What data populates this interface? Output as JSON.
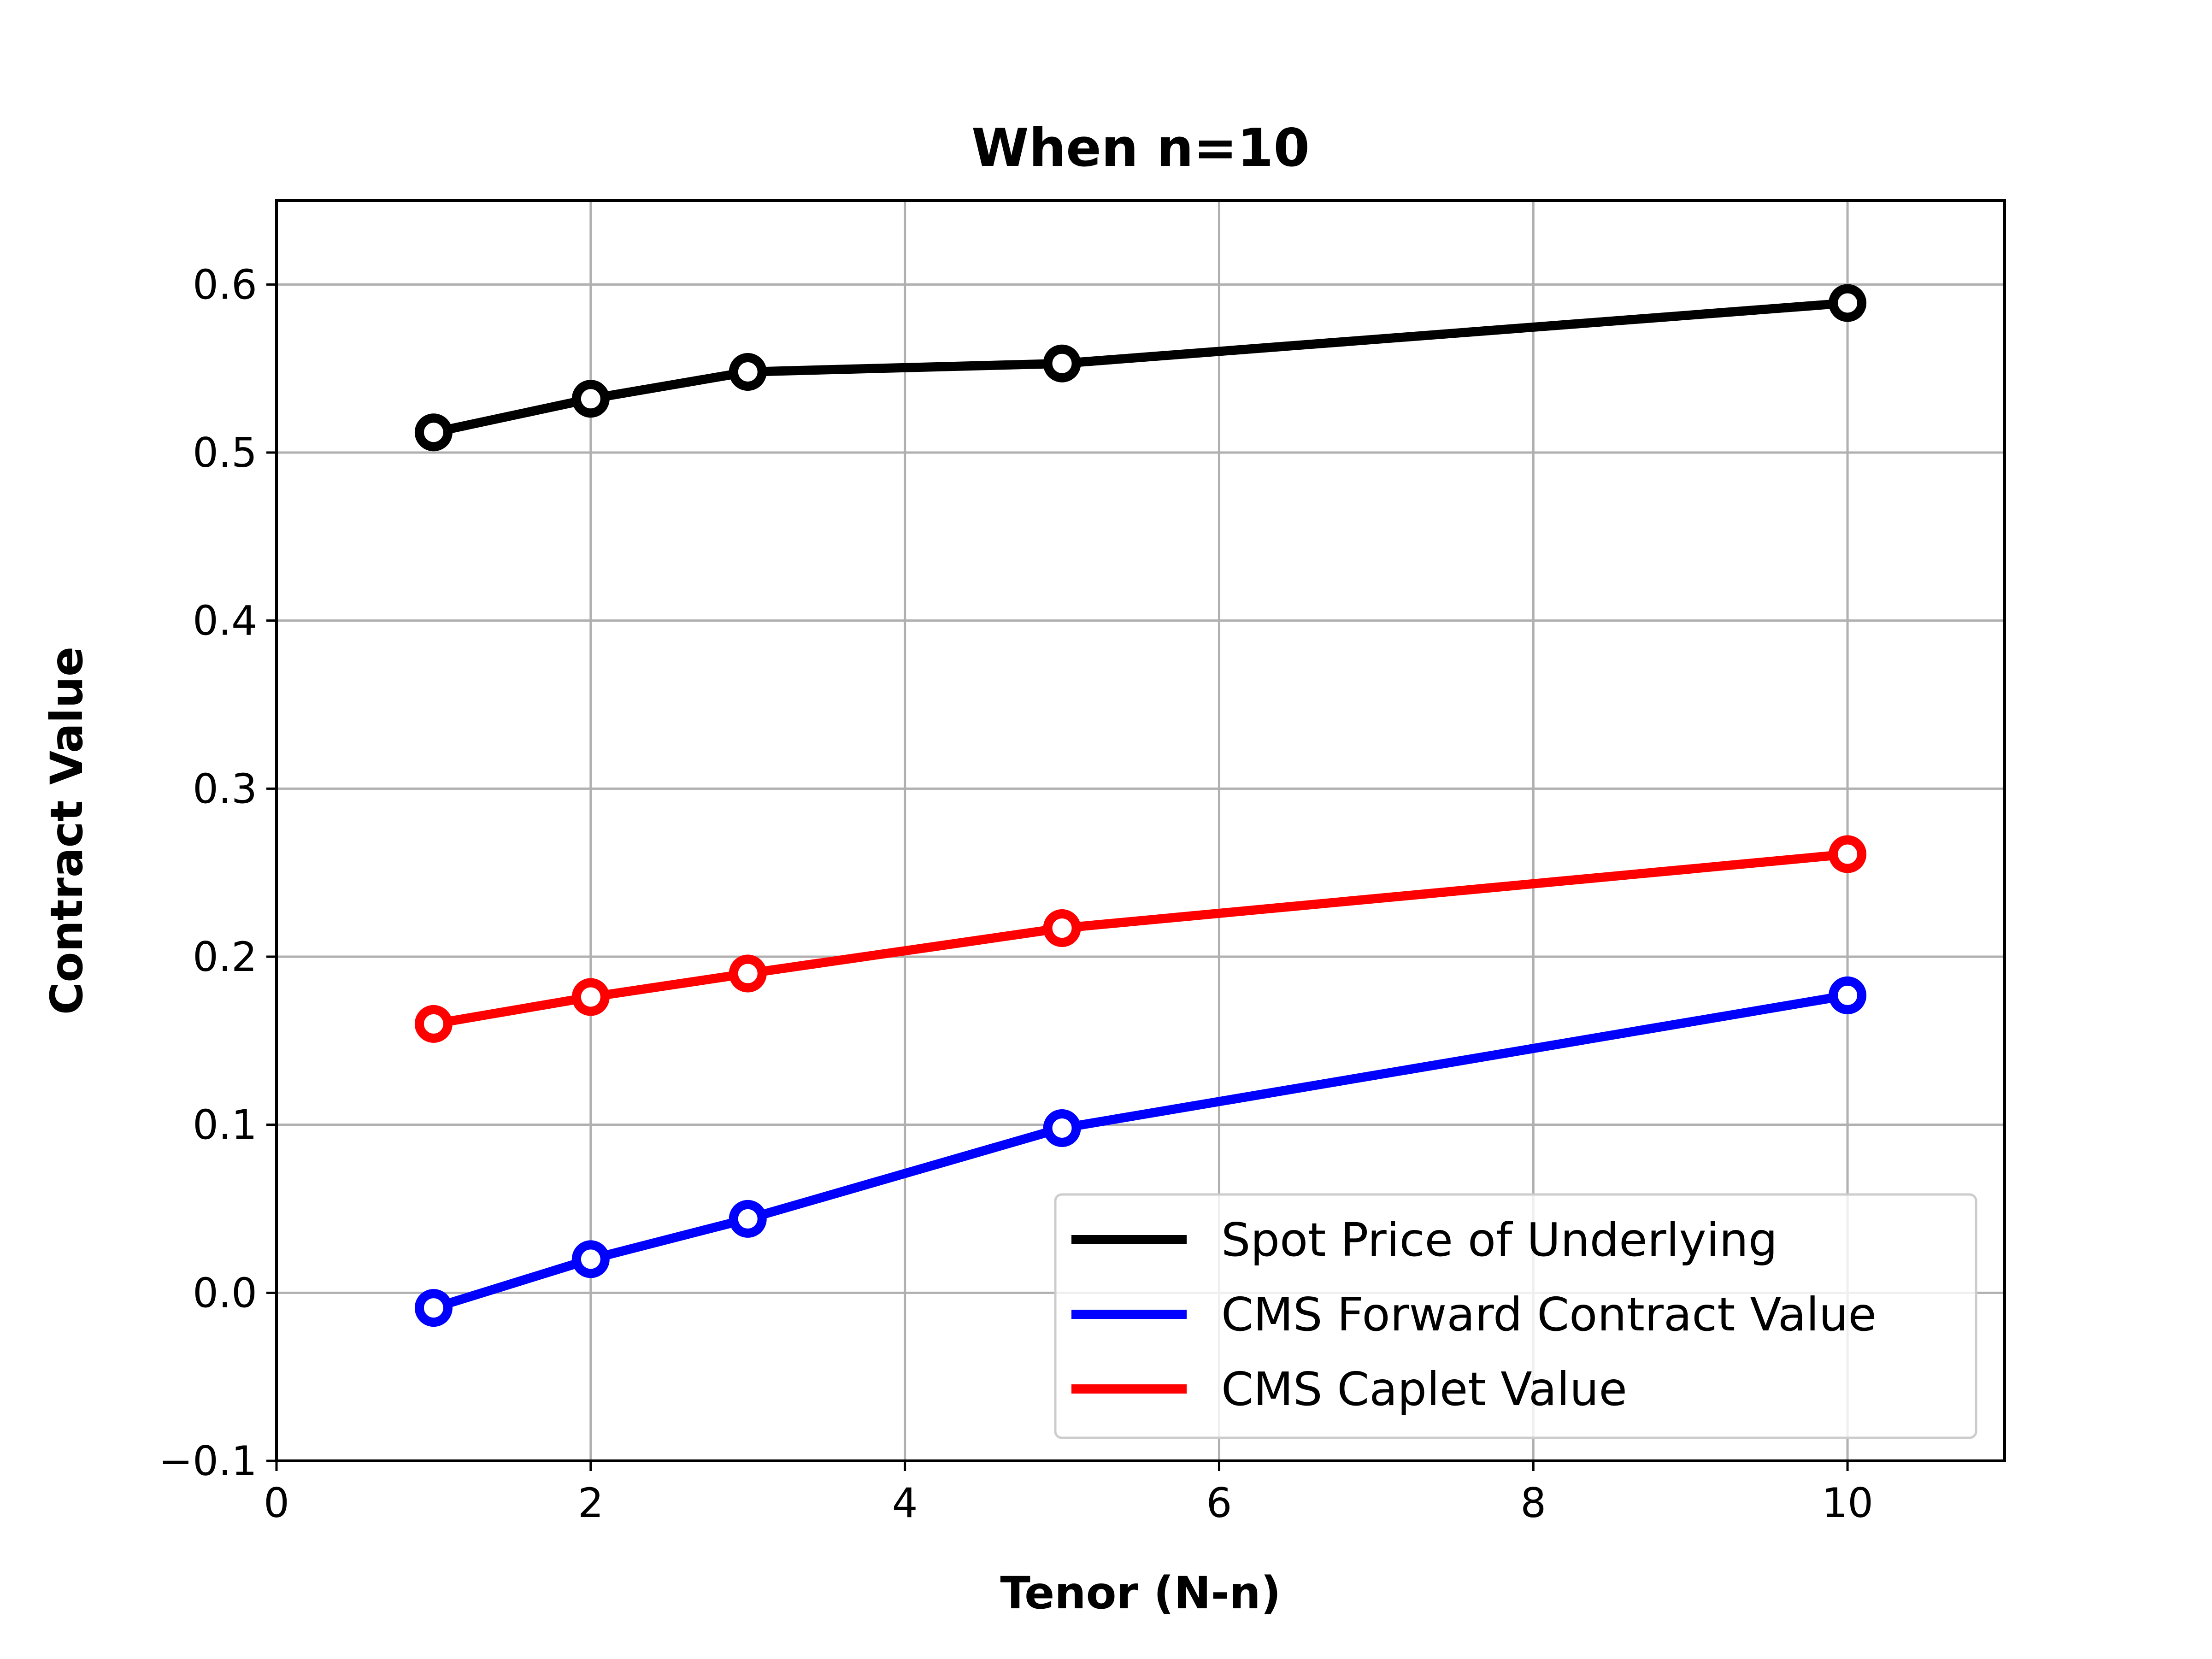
{
  "chart_data": {
    "type": "line",
    "title": "When n=10",
    "xlabel": "Tenor (N-n)",
    "ylabel": "Contract Value",
    "xlim": [
      0,
      11
    ],
    "ylim": [
      -0.1,
      0.65
    ],
    "xticks": [
      0,
      2,
      4,
      6,
      8,
      10
    ],
    "xtick_labels": [
      "0",
      "2",
      "4",
      "6",
      "8",
      "10"
    ],
    "yticks": [
      -0.1,
      0.0,
      0.1,
      0.2,
      0.3,
      0.4,
      0.5,
      0.6
    ],
    "ytick_labels": [
      "−0.1",
      "0.0",
      "0.1",
      "0.2",
      "0.3",
      "0.4",
      "0.5",
      "0.6"
    ],
    "grid": true,
    "legend_position": "lower-right",
    "x": [
      1,
      2,
      3,
      5,
      10
    ],
    "series": [
      {
        "name": "Spot Price of Underlying",
        "color": "#000000",
        "values": [
          0.512,
          0.532,
          0.548,
          0.553,
          0.589
        ]
      },
      {
        "name": "CMS Forward Contract Value",
        "color": "#0000ff",
        "values": [
          -0.009,
          0.02,
          0.044,
          0.098,
          0.177
        ]
      },
      {
        "name": "CMS Caplet Value",
        "color": "#ff0000",
        "values": [
          0.16,
          0.176,
          0.19,
          0.217,
          0.261
        ]
      }
    ]
  }
}
